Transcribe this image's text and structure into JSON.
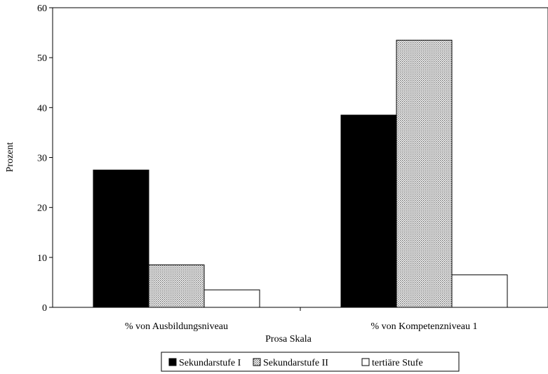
{
  "chart_data": {
    "type": "bar",
    "title": "",
    "xlabel": "Prosa Skala",
    "ylabel": "Prozent",
    "ylim": [
      0,
      60
    ],
    "yticks": [
      0,
      10,
      20,
      30,
      40,
      50,
      60
    ],
    "categories": [
      "% von Ausbildungsniveau",
      "% von Kompetenzniveau 1"
    ],
    "series": [
      {
        "name": "Sekundarstufe I",
        "values": [
          27.5,
          38.5
        ],
        "color": "#000000",
        "pattern": "solid"
      },
      {
        "name": "Sekundarstufe II",
        "values": [
          8.5,
          53.5
        ],
        "color": "#bdbdbd",
        "pattern": "dotted"
      },
      {
        "name": "tertiäre Stufe",
        "values": [
          3.5,
          6.5
        ],
        "color": "#ffffff",
        "pattern": "empty"
      }
    ],
    "grid": false,
    "legend_position": "bottom"
  }
}
